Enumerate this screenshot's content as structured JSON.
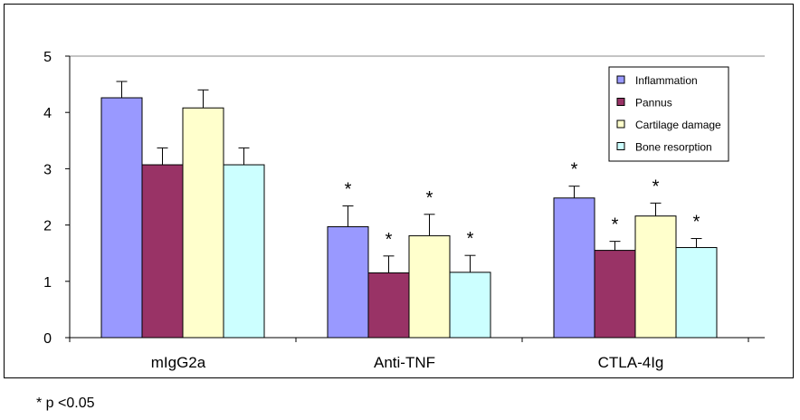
{
  "chart_data": {
    "type": "bar",
    "categories": [
      "mIgG2a",
      "Anti-TNF",
      "CTLA-4Ig"
    ],
    "series": [
      {
        "name": "Inflammation",
        "color": "#9999ff",
        "values": [
          4.26,
          1.97,
          2.48
        ],
        "errors": [
          0.29,
          0.37,
          0.21
        ]
      },
      {
        "name": "Pannus",
        "color": "#993366",
        "values": [
          3.07,
          1.15,
          1.55
        ],
        "errors": [
          0.3,
          0.3,
          0.16
        ]
      },
      {
        "name": "Cartilage damage",
        "color": "#ffffcc",
        "values": [
          4.08,
          1.81,
          2.16
        ],
        "errors": [
          0.32,
          0.38,
          0.23
        ]
      },
      {
        "name": "Bone resorption",
        "color": "#ccffff",
        "values": [
          3.07,
          1.16,
          1.6
        ],
        "errors": [
          0.3,
          0.3,
          0.16
        ]
      }
    ],
    "significance": [
      [
        false,
        true,
        true
      ],
      [
        false,
        true,
        true
      ],
      [
        false,
        true,
        true
      ],
      [
        false,
        true,
        true
      ]
    ],
    "significance_marker": "*",
    "ylim": [
      0,
      5
    ],
    "yticks": [
      "0",
      "1",
      "2",
      "3",
      "4",
      "5"
    ],
    "grid": false,
    "legend_position": "top-right",
    "xlabel": "",
    "ylabel": "",
    "title": ""
  },
  "footnote": "* p <0.05"
}
